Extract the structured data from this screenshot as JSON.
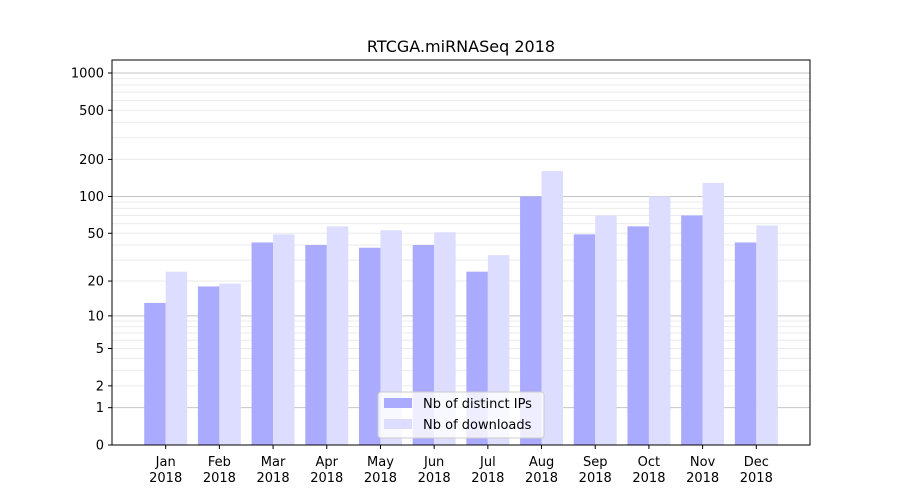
{
  "chart_data": {
    "type": "bar",
    "title": "RTCGA.miRNASeq 2018",
    "xlabel": "",
    "ylabel": "",
    "yscale": "log10(1+y)",
    "ylim": [
      0,
      1273
    ],
    "grid": true,
    "legend_position": "lower-center",
    "categories": [
      "Jan\n2018",
      "Feb\n2018",
      "Mar\n2018",
      "Apr\n2018",
      "May\n2018",
      "Jun\n2018",
      "Jul\n2018",
      "Aug\n2018",
      "Sep\n2018",
      "Oct\n2018",
      "Nov\n2018",
      "Dec\n2018"
    ],
    "yticks": [
      0,
      1,
      2,
      5,
      10,
      20,
      50,
      100,
      200,
      500,
      1000
    ],
    "ytick_labels": [
      "0",
      "1",
      "2",
      "5",
      "10",
      "20",
      "50",
      "100",
      "200",
      "500",
      "1000"
    ],
    "series": [
      {
        "name": "Nb of distinct IPs",
        "color": "#aaaaff",
        "values": [
          13,
          18,
          42,
          40,
          38,
          40,
          24,
          100,
          49,
          57,
          70,
          42
        ]
      },
      {
        "name": "Nb of downloads",
        "color": "#ddddff",
        "values": [
          24,
          19,
          49,
          57,
          53,
          51,
          33,
          161,
          70,
          100,
          129,
          58
        ]
      }
    ]
  }
}
